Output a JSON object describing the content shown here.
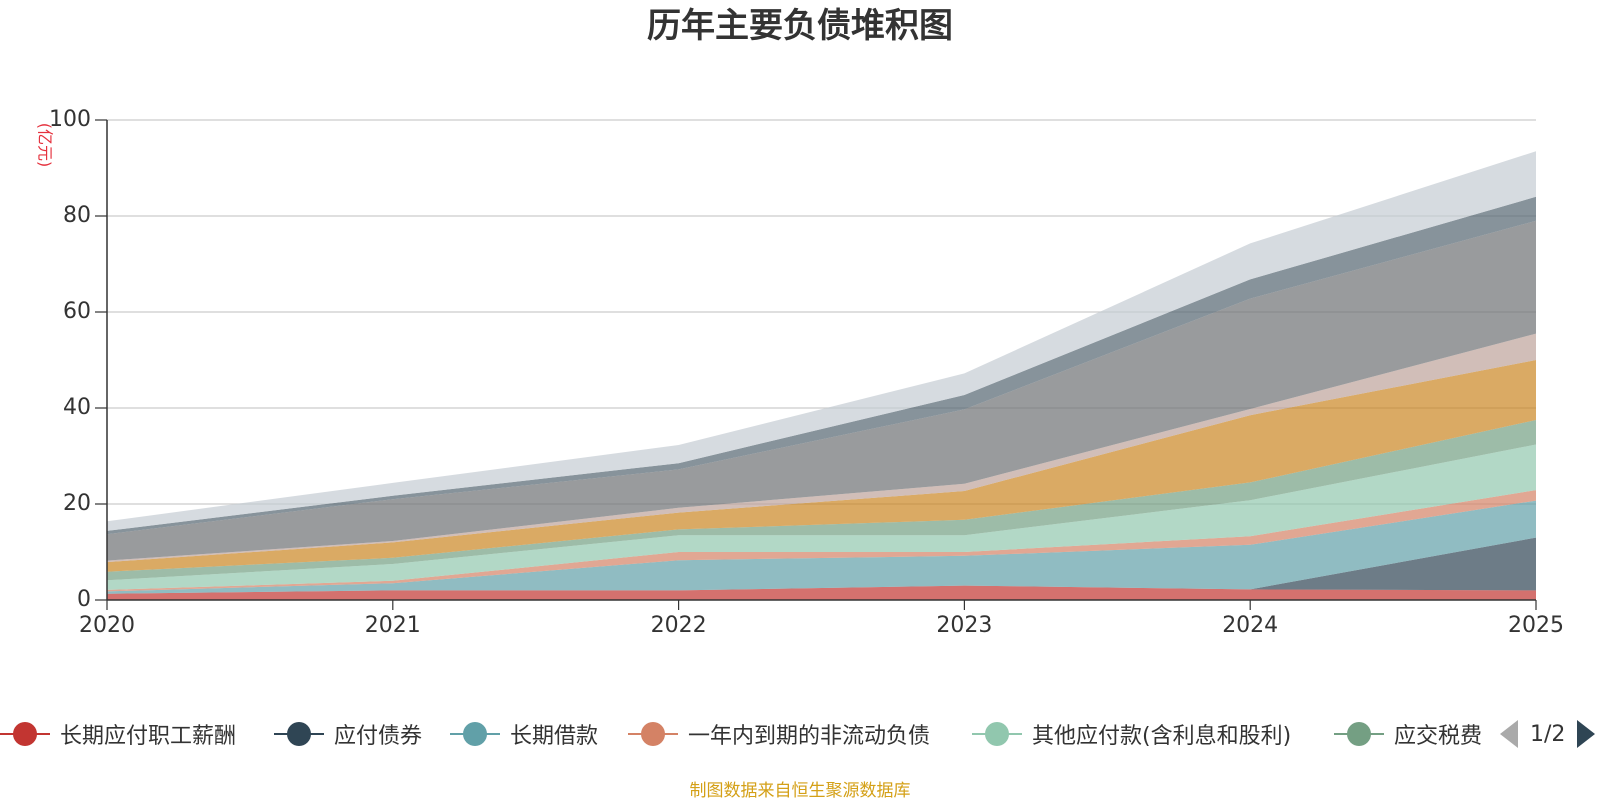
{
  "chart_data": {
    "type": "area",
    "stacked": true,
    "title": "历年主要负债堆积图",
    "ylabel": "(亿元)",
    "xlabel": "",
    "x": [
      "2020",
      "2021",
      "2022",
      "2023",
      "2024",
      "2025"
    ],
    "ylim": [
      0,
      100
    ],
    "yticks": [
      0,
      20,
      40,
      60,
      80,
      100
    ],
    "grid": true,
    "series": [
      {
        "name": "长期应付职工薪酬",
        "color": "#c23531",
        "values": [
          1.3,
          2.0,
          2.0,
          3.0,
          2.2,
          2.0
        ]
      },
      {
        "name": "应付债券",
        "color": "#2f4554",
        "values": [
          0,
          0,
          0,
          0,
          0,
          11.0
        ]
      },
      {
        "name": "长期借款",
        "color": "#61a0a8",
        "values": [
          0.5,
          1.5,
          6.3,
          6.2,
          9.3,
          7.7
        ]
      },
      {
        "name": "一年内到期的非流动负债",
        "color": "#d48265",
        "values": [
          0.3,
          0.5,
          1.7,
          0.8,
          1.8,
          2.2
        ]
      },
      {
        "name": "其他应付款(含利息和股利)",
        "color": "#91c7ae",
        "values": [
          2.0,
          3.5,
          3.5,
          3.5,
          7.5,
          9.5
        ]
      },
      {
        "name": "应交税费",
        "color": "#749f83",
        "values": [
          1.8,
          1.3,
          1.2,
          3.2,
          3.7,
          5.1
        ]
      },
      {
        "name": "",
        "color": "#ca8622",
        "values": [
          2.0,
          3.2,
          3.5,
          6.0,
          14.0,
          12.5
        ]
      },
      {
        "name": "",
        "color": "#bda29a",
        "values": [
          0.3,
          0.3,
          1.0,
          1.5,
          1.3,
          5.5
        ]
      },
      {
        "name": "",
        "color": "#6e7074",
        "values": [
          5.5,
          8.7,
          8.0,
          15.5,
          23.0,
          23.5
        ]
      },
      {
        "name": "",
        "color": "#546570",
        "values": [
          0.7,
          0.7,
          1.3,
          3.0,
          4.0,
          5.0
        ]
      },
      {
        "name": "",
        "color": "#c4ccd3",
        "values": [
          2.0,
          2.7,
          3.8,
          4.5,
          7.5,
          9.5
        ]
      }
    ],
    "legend_position": "bottom",
    "legend_visible_count": 6
  },
  "legend": {
    "page_label": "1/2",
    "prev_label": "上一页",
    "next_label": "下一页"
  },
  "source_note": "制图数据来自恒生聚源数据库"
}
